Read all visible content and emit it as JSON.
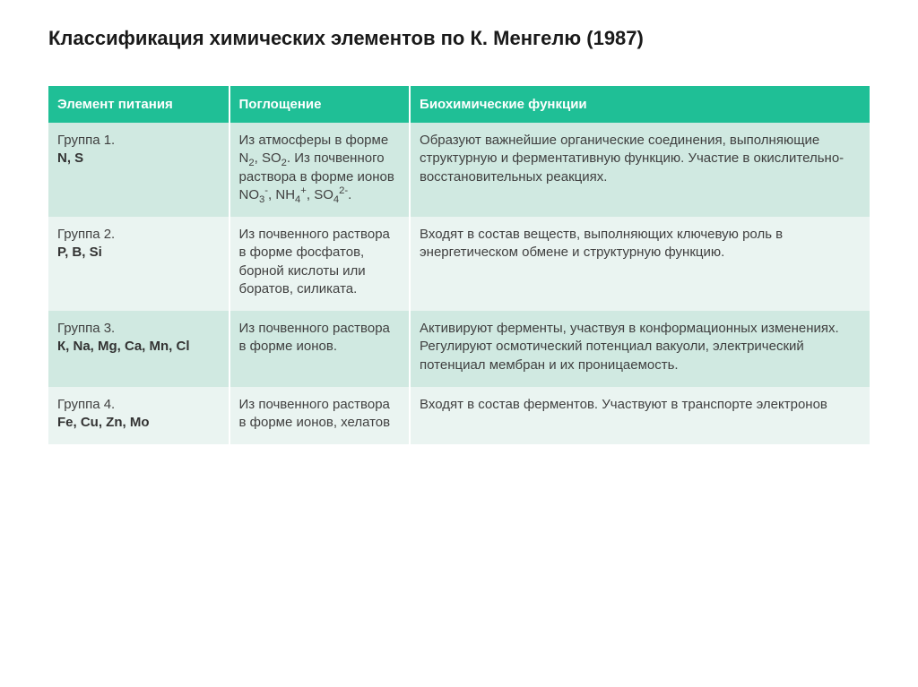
{
  "title": "Классификация химических элементов по К. Менгелю (1987)",
  "colors": {
    "header_bg": "#1fbf96",
    "header_fg": "#ffffff",
    "row_even_bg": "#d0e9e1",
    "row_odd_bg": "#eaf4f1",
    "text": "#404040"
  },
  "table": {
    "columns": [
      {
        "label": "Элемент питания",
        "width_pct": 22
      },
      {
        "label": "Поглощение",
        "width_pct": 22
      },
      {
        "label": "Биохимические функции",
        "width_pct": 56
      }
    ],
    "rows": [
      {
        "group_label": "Группа 1.",
        "group_elements": "N, S",
        "absorption_html": "Из атмосферы в форме N<sub>2</sub>, SO<sub>2</sub>. Из почвенного раствора в форме ионов NO<sub>3</sub><sup>-</sup>, NH<sub>4</sub><sup>+</sup>, SO<sub>4</sub><sup>2-</sup>.",
        "functions": "Образуют важнейшие  органические соединения, выполняющие структурную и ферментативную функцию. Участие в окислительно-восстановительных реакциях."
      },
      {
        "group_label": "Группа 2.",
        "group_elements": "P, B, Si",
        "absorption_html": "Из почвенного раствора в форме фосфатов, борной кислоты или боратов, силиката.",
        "functions": "Входят в состав веществ, выполняющих ключевую роль в энергетическом обмене и структурную функцию."
      },
      {
        "group_label": "Группа 3.",
        "group_elements": "К, Na, Mg, Ca, Mn, Cl",
        "absorption_html": "Из почвенного раствора в форме ионов.",
        "functions": "Активируют ферменты, участвуя в конформационных изменениях. Регулируют осмотический потенциал вакуоли, электрический потенциал мембран и их проницаемость."
      },
      {
        "group_label": "Группа 4.",
        "group_elements": "Fe, Cu, Zn, Mo",
        "absorption_html": "Из почвенного раствора в форме ионов, хелатов",
        "functions": "Входят в состав ферментов. Участвуют в транспорте электронов"
      }
    ]
  }
}
